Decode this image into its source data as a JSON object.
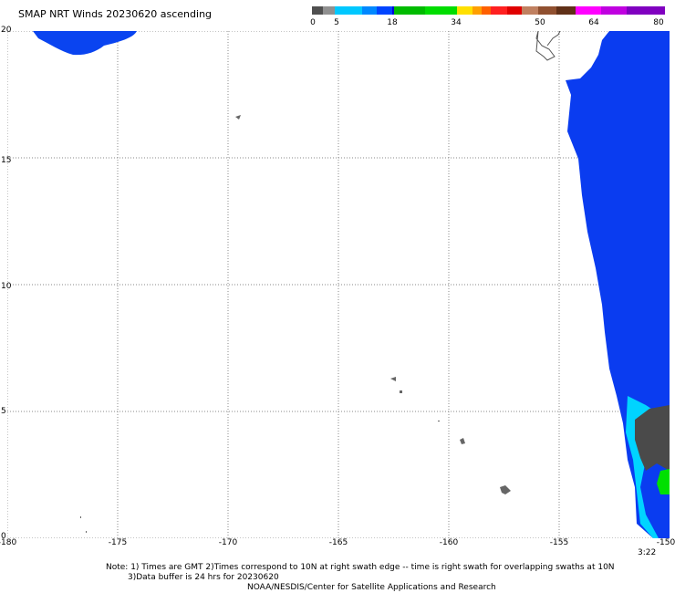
{
  "title": "SMAP NRT Winds 20230620 ascending",
  "colorbar": {
    "labels": [
      "0",
      "5",
      "18",
      "34",
      "50",
      "64",
      "80"
    ],
    "segments": [
      "#505050",
      "#909090",
      "#00c8ff",
      "#0088ff",
      "#0044ff",
      "#0000d8",
      "#00bb00",
      "#00dd00",
      "#ffe000",
      "#ffa000",
      "#ff6000",
      "#ff2020",
      "#e00000",
      "#c08060",
      "#905030",
      "#603018",
      "#ff00ff",
      "#c000e0",
      "#8000c0"
    ]
  },
  "map": {
    "lon_range": [
      -180,
      -150
    ],
    "lat_range": [
      0,
      20
    ],
    "x_ticks": [
      "-180",
      "-175",
      "-170",
      "-165",
      "-160",
      "-155",
      "-150"
    ],
    "y_ticks": [
      "0",
      "5",
      "10",
      "15",
      "20"
    ],
    "gridlines": true,
    "colors": {
      "wind_blue": "#0a3cf0",
      "wind_cyan": "#00d4ff",
      "rain_flag": "#4a4a4a",
      "wind_green": "#00e000",
      "land_outline": "#555555"
    }
  },
  "time_label": "3:22",
  "notes": {
    "line1": "Note: 1) Times are GMT 2)Times correspond to 10N at right swath edge -- time is right swath for overlapping swaths at 10N",
    "line2": "3)Data buffer is 24 hrs for 20230620",
    "line3": "NOAA/NESDIS/Center for Satellite Applications and Research"
  }
}
